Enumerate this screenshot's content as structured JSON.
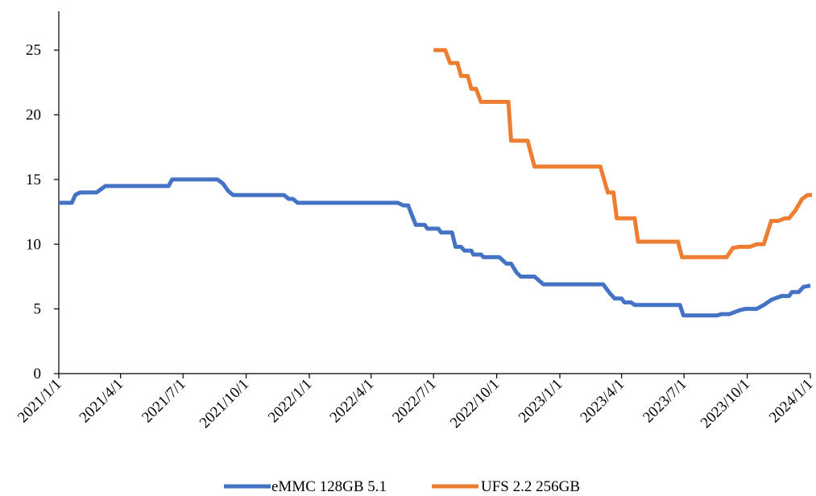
{
  "chart_data": {
    "type": "line",
    "title": "",
    "xlabel": "",
    "ylabel": "",
    "x_axis": {
      "type": "date",
      "range": [
        "2021-01-01",
        "2024-01-01"
      ],
      "tick_dates": [
        "2021-01-01",
        "2021-04-01",
        "2021-07-01",
        "2021-10-01",
        "2022-01-01",
        "2022-04-01",
        "2022-07-01",
        "2022-10-01",
        "2023-01-01",
        "2023-04-01",
        "2023-07-01",
        "2023-10-01",
        "2024-01-01"
      ],
      "tick_labels": [
        "2021/1/1",
        "2021/4/1",
        "2021/7/1",
        "2021/10/1",
        "2022/1/1",
        "2022/4/1",
        "2022/7/1",
        "2022/10/1",
        "2023/1/1",
        "2023/4/1",
        "2023/7/1",
        "2023/10/1",
        "2024/1/1"
      ]
    },
    "y_axis": {
      "range": [
        0,
        28
      ],
      "ticks": [
        0,
        5,
        10,
        15,
        20,
        25
      ],
      "tick_labels": [
        "0",
        "5",
        "10",
        "15",
        "20",
        "25"
      ]
    },
    "grid": false,
    "legend_position": "bottom",
    "series": [
      {
        "name": "eMMC 128GB 5.1",
        "color": "#4472C4",
        "points": [
          [
            "2021-01-01",
            13.2
          ],
          [
            "2021-01-20",
            13.2
          ],
          [
            "2021-01-25",
            13.8
          ],
          [
            "2021-02-01",
            14.0
          ],
          [
            "2021-02-25",
            14.0
          ],
          [
            "2021-03-10",
            14.5
          ],
          [
            "2021-06-10",
            14.5
          ],
          [
            "2021-06-15",
            15.0
          ],
          [
            "2021-08-20",
            15.0
          ],
          [
            "2021-08-28",
            14.7
          ],
          [
            "2021-09-05",
            14.1
          ],
          [
            "2021-09-12",
            13.8
          ],
          [
            "2021-11-25",
            13.8
          ],
          [
            "2021-12-02",
            13.5
          ],
          [
            "2021-12-08",
            13.5
          ],
          [
            "2021-12-15",
            13.2
          ],
          [
            "2022-05-10",
            13.2
          ],
          [
            "2022-05-18",
            13.0
          ],
          [
            "2022-05-25",
            13.0
          ],
          [
            "2022-06-05",
            11.5
          ],
          [
            "2022-06-18",
            11.5
          ],
          [
            "2022-06-22",
            11.2
          ],
          [
            "2022-07-08",
            11.2
          ],
          [
            "2022-07-12",
            10.9
          ],
          [
            "2022-07-28",
            10.9
          ],
          [
            "2022-08-02",
            9.8
          ],
          [
            "2022-08-10",
            9.8
          ],
          [
            "2022-08-15",
            9.5
          ],
          [
            "2022-08-25",
            9.5
          ],
          [
            "2022-08-28",
            9.2
          ],
          [
            "2022-09-08",
            9.2
          ],
          [
            "2022-09-12",
            9.0
          ],
          [
            "2022-10-05",
            9.0
          ],
          [
            "2022-10-15",
            8.5
          ],
          [
            "2022-10-22",
            8.5
          ],
          [
            "2022-10-30",
            7.8
          ],
          [
            "2022-11-05",
            7.5
          ],
          [
            "2022-11-25",
            7.5
          ],
          [
            "2022-12-08",
            6.9
          ],
          [
            "2023-03-05",
            6.9
          ],
          [
            "2023-03-15",
            6.2
          ],
          [
            "2023-03-22",
            5.8
          ],
          [
            "2023-04-01",
            5.8
          ],
          [
            "2023-04-05",
            5.5
          ],
          [
            "2023-04-15",
            5.5
          ],
          [
            "2023-04-20",
            5.3
          ],
          [
            "2023-06-25",
            5.3
          ],
          [
            "2023-06-30",
            4.5
          ],
          [
            "2023-08-18",
            4.5
          ],
          [
            "2023-08-25",
            4.6
          ],
          [
            "2023-09-05",
            4.6
          ],
          [
            "2023-09-20",
            4.9
          ],
          [
            "2023-09-28",
            5.0
          ],
          [
            "2023-10-15",
            5.0
          ],
          [
            "2023-10-25",
            5.3
          ],
          [
            "2023-11-05",
            5.7
          ],
          [
            "2023-11-20",
            6.0
          ],
          [
            "2023-12-01",
            6.0
          ],
          [
            "2023-12-05",
            6.3
          ],
          [
            "2023-12-15",
            6.3
          ],
          [
            "2023-12-22",
            6.7
          ],
          [
            "2024-01-01",
            6.8
          ]
        ]
      },
      {
        "name": "UFS 2.2 256GB",
        "color": "#ED7D31",
        "points": [
          [
            "2022-07-01",
            25.0
          ],
          [
            "2022-07-18",
            25.0
          ],
          [
            "2022-07-25",
            24.0
          ],
          [
            "2022-08-05",
            24.0
          ],
          [
            "2022-08-10",
            23.0
          ],
          [
            "2022-08-20",
            23.0
          ],
          [
            "2022-08-25",
            22.0
          ],
          [
            "2022-09-01",
            22.0
          ],
          [
            "2022-09-08",
            21.0
          ],
          [
            "2022-10-05",
            21.0
          ],
          [
            "2022-10-10",
            21.0
          ],
          [
            "2022-10-18",
            21.0
          ],
          [
            "2022-10-22",
            18.0
          ],
          [
            "2022-11-15",
            18.0
          ],
          [
            "2022-11-25",
            16.0
          ],
          [
            "2023-03-01",
            16.0
          ],
          [
            "2023-03-12",
            14.0
          ],
          [
            "2023-03-20",
            14.0
          ],
          [
            "2023-03-25",
            12.0
          ],
          [
            "2023-04-20",
            12.0
          ],
          [
            "2023-04-25",
            10.2
          ],
          [
            "2023-06-22",
            10.2
          ],
          [
            "2023-06-28",
            9.0
          ],
          [
            "2023-09-01",
            9.0
          ],
          [
            "2023-09-10",
            9.7
          ],
          [
            "2023-09-20",
            9.8
          ],
          [
            "2023-10-05",
            9.8
          ],
          [
            "2023-10-15",
            10.0
          ],
          [
            "2023-10-25",
            10.0
          ],
          [
            "2023-11-05",
            11.8
          ],
          [
            "2023-11-15",
            11.8
          ],
          [
            "2023-11-25",
            12.0
          ],
          [
            "2023-12-01",
            12.0
          ],
          [
            "2023-12-10",
            12.6
          ],
          [
            "2023-12-20",
            13.5
          ],
          [
            "2023-12-28",
            13.8
          ],
          [
            "2024-01-05",
            13.8
          ],
          [
            "2024-01-12",
            14.5
          ]
        ]
      }
    ]
  }
}
